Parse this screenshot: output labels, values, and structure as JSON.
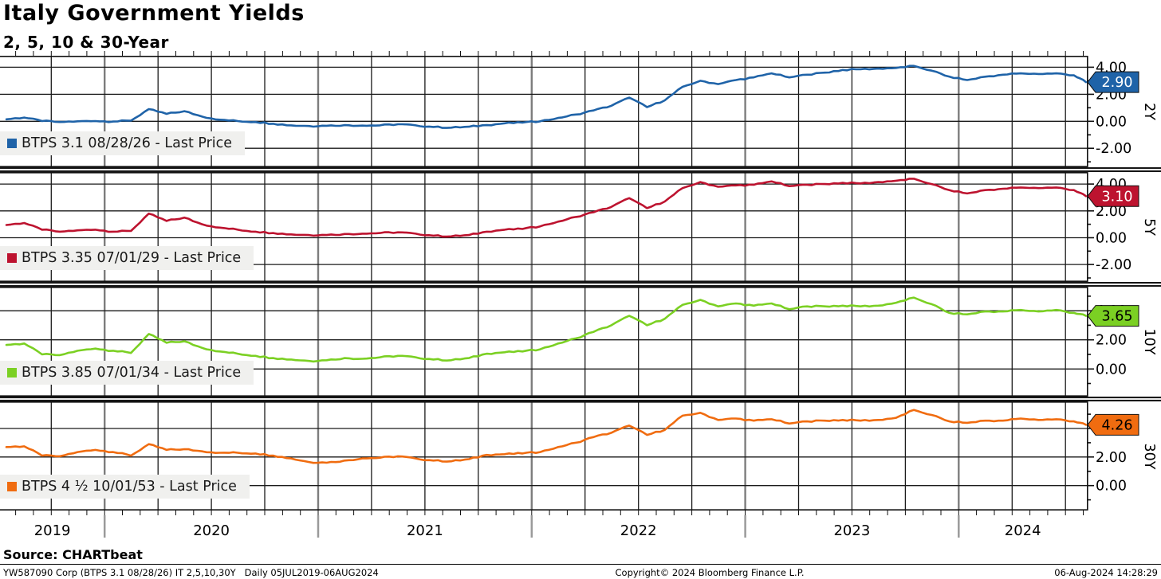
{
  "title": "Italy Government Yields",
  "subtitle": "2, 5, 10 & 30-Year",
  "source_line": "Source: CHARTbeat",
  "footer": {
    "left": "YW587090 Corp (BTPS 3.1 08/28/26) IT 2,5,10,30Y   Daily 05JUL2019-06AUG2024",
    "center": "Copyright© 2024 Bloomberg Finance L.P.",
    "right": "06-Aug-2024 14:28:29"
  },
  "x_axis": {
    "numeric_start": 2019.51,
    "numeric_end": 2024.6,
    "range_label": "05JUL2019 - 06AUG2024",
    "year_labels": [
      "2019",
      "2020",
      "2021",
      "2022",
      "2023",
      "2024"
    ],
    "series_x_start": 2019.54,
    "series_x_step_years": 0.0833333
  },
  "chart_data": [
    {
      "type": "line",
      "id": "2y",
      "axis_label": "2Y",
      "legend": "BTPS 3.1 08/28/26 - Last Price",
      "color": "#1f63a8",
      "tag_value": "2.90",
      "tag_text_color": "#ffffff",
      "y_ticks": [
        4,
        2,
        0,
        -2
      ],
      "ylim": [
        -3.4,
        4.85
      ],
      "values": [
        0.15,
        0.28,
        0.02,
        -0.05,
        0.0,
        0.02,
        -0.02,
        0.05,
        0.9,
        0.55,
        0.75,
        0.35,
        0.12,
        0.02,
        -0.05,
        -0.18,
        -0.3,
        -0.35,
        -0.33,
        -0.28,
        -0.32,
        -0.3,
        -0.22,
        -0.3,
        -0.42,
        -0.47,
        -0.4,
        -0.28,
        -0.15,
        -0.1,
        0.0,
        0.25,
        0.5,
        0.8,
        1.15,
        1.75,
        1.05,
        1.55,
        2.55,
        3.0,
        2.75,
        3.05,
        3.25,
        3.55,
        3.25,
        3.45,
        3.6,
        3.8,
        3.85,
        3.9,
        3.95,
        4.1,
        3.75,
        3.3,
        3.05,
        3.3,
        3.45,
        3.55,
        3.5,
        3.55,
        3.4,
        2.9
      ]
    },
    {
      "type": "line",
      "id": "5y",
      "axis_label": "5Y",
      "legend": "BTPS 3.35 07/01/29 - Last Price",
      "color": "#bd132f",
      "tag_value": "3.10",
      "tag_text_color": "#ffffff",
      "y_ticks": [
        4,
        2,
        0,
        -2
      ],
      "ylim": [
        -3.3,
        4.9
      ],
      "values": [
        0.95,
        1.1,
        0.6,
        0.45,
        0.55,
        0.6,
        0.45,
        0.5,
        1.8,
        1.25,
        1.5,
        1.0,
        0.75,
        0.6,
        0.45,
        0.35,
        0.25,
        0.2,
        0.2,
        0.28,
        0.3,
        0.35,
        0.4,
        0.3,
        0.15,
        0.1,
        0.2,
        0.45,
        0.6,
        0.65,
        0.85,
        1.2,
        1.55,
        1.9,
        2.3,
        2.95,
        2.2,
        2.7,
        3.7,
        4.15,
        3.8,
        3.9,
        3.95,
        4.2,
        3.85,
        3.95,
        4.0,
        4.1,
        4.05,
        4.15,
        4.25,
        4.4,
        4.0,
        3.55,
        3.3,
        3.55,
        3.65,
        3.75,
        3.7,
        3.75,
        3.55,
        3.1
      ]
    },
    {
      "type": "line",
      "id": "10y",
      "axis_label": "10Y",
      "legend": "BTPS 3.85 07/01/34 - Last Price",
      "color": "#7bd023",
      "tag_value": "3.65",
      "tag_text_color": "#000000",
      "y_ticks": [
        4,
        2,
        0
      ],
      "ylim": [
        -1.9,
        5.65
      ],
      "values": [
        1.65,
        1.75,
        1.0,
        0.95,
        1.25,
        1.4,
        1.25,
        1.1,
        2.4,
        1.8,
        1.9,
        1.45,
        1.2,
        1.05,
        0.9,
        0.75,
        0.65,
        0.55,
        0.6,
        0.75,
        0.7,
        0.8,
        0.9,
        0.8,
        0.65,
        0.6,
        0.75,
        1.05,
        1.15,
        1.2,
        1.35,
        1.75,
        2.1,
        2.55,
        3.0,
        3.65,
        3.0,
        3.45,
        4.4,
        4.75,
        4.3,
        4.5,
        4.35,
        4.5,
        4.1,
        4.3,
        4.3,
        4.35,
        4.3,
        4.35,
        4.55,
        4.9,
        4.45,
        3.85,
        3.75,
        3.95,
        3.95,
        4.05,
        3.95,
        4.05,
        3.85,
        3.65
      ]
    },
    {
      "type": "line",
      "id": "30y",
      "axis_label": "30Y",
      "legend": "BTPS 4 ½  10/01/53 - Last Price",
      "color": "#f06c10",
      "tag_value": "4.26",
      "tag_text_color": "#000000",
      "y_ticks": [
        4,
        2,
        0
      ],
      "ylim": [
        -1.75,
        5.9
      ],
      "values": [
        2.7,
        2.75,
        2.1,
        2.05,
        2.35,
        2.5,
        2.35,
        2.1,
        2.9,
        2.5,
        2.55,
        2.4,
        2.3,
        2.3,
        2.25,
        2.1,
        1.9,
        1.65,
        1.6,
        1.75,
        1.9,
        1.95,
        2.05,
        1.9,
        1.75,
        1.7,
        1.85,
        2.15,
        2.2,
        2.25,
        2.35,
        2.7,
        3.0,
        3.4,
        3.7,
        4.2,
        3.55,
        3.9,
        4.9,
        5.1,
        4.6,
        4.7,
        4.55,
        4.65,
        4.35,
        4.5,
        4.55,
        4.6,
        4.55,
        4.6,
        4.75,
        5.3,
        4.95,
        4.5,
        4.4,
        4.55,
        4.55,
        4.7,
        4.6,
        4.65,
        4.5,
        4.26
      ]
    }
  ]
}
